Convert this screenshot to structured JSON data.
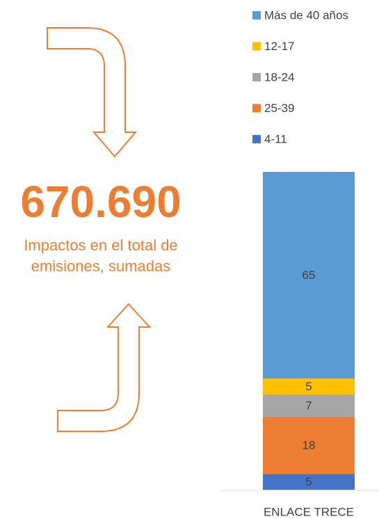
{
  "chart_data": {
    "type": "stacked_bar",
    "annotations": [
      "670.690",
      "Impactos en el total de emisiones, sumadas"
    ],
    "categories": [
      "ENLACE TRECE"
    ],
    "series": [
      {
        "name": "4-11",
        "color": "#4472c4",
        "values": [
          5
        ]
      },
      {
        "name": "25-39",
        "color": "#ed7d31",
        "values": [
          18
        ]
      },
      {
        "name": "18-24",
        "color": "#a5a5a5",
        "values": [
          7
        ]
      },
      {
        "name": "12-17",
        "color": "#ffc000",
        "values": [
          5
        ]
      },
      {
        "name": "Más de 40 años",
        "color": "#5b9bd5",
        "values": [
          65
        ]
      }
    ],
    "ylim": [
      0,
      100
    ],
    "legend": "top-right"
  }
}
